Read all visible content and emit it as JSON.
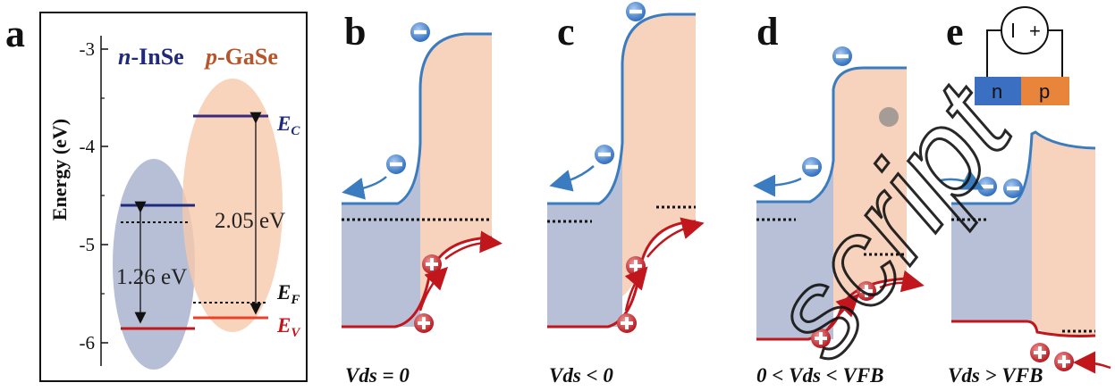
{
  "panels": {
    "a": "a",
    "b": "b",
    "c": "c",
    "d": "d",
    "e": "e"
  },
  "panel_a": {
    "y_axis_label": "Energy (eV)",
    "y_ticks": [
      "-3",
      "-4",
      "-5",
      "-6"
    ],
    "material_n_prefix": "n",
    "material_n_name": "-InSe",
    "material_p_prefix": "p",
    "material_p_name": "-GaSe",
    "gap_n": "1.26 eV",
    "gap_p": "2.05 eV",
    "ec_sym": "E",
    "ec_sub": "C",
    "ef_sym": "E",
    "ef_sub": "F",
    "ev_sym": "E",
    "ev_sub": "V"
  },
  "conditions": {
    "b": "Vds = 0",
    "c": "Vds < 0",
    "d": "0 < Vds < VFB",
    "e": "Vds > VFB"
  },
  "circuit": {
    "n_label": "n",
    "p_label": "p",
    "source_minus": "−",
    "source_plus": "+"
  },
  "watermark": "script",
  "colors": {
    "n_region": "#b7c0d6",
    "p_region": "#f7d2bd",
    "conduction_band": "#3a7cbf",
    "valence_band": "#c0161c",
    "insE_level": "#1f2a7a",
    "gase_level": "#e8422a",
    "electron": "#3b7fd0",
    "hole": "#c8232a"
  }
}
